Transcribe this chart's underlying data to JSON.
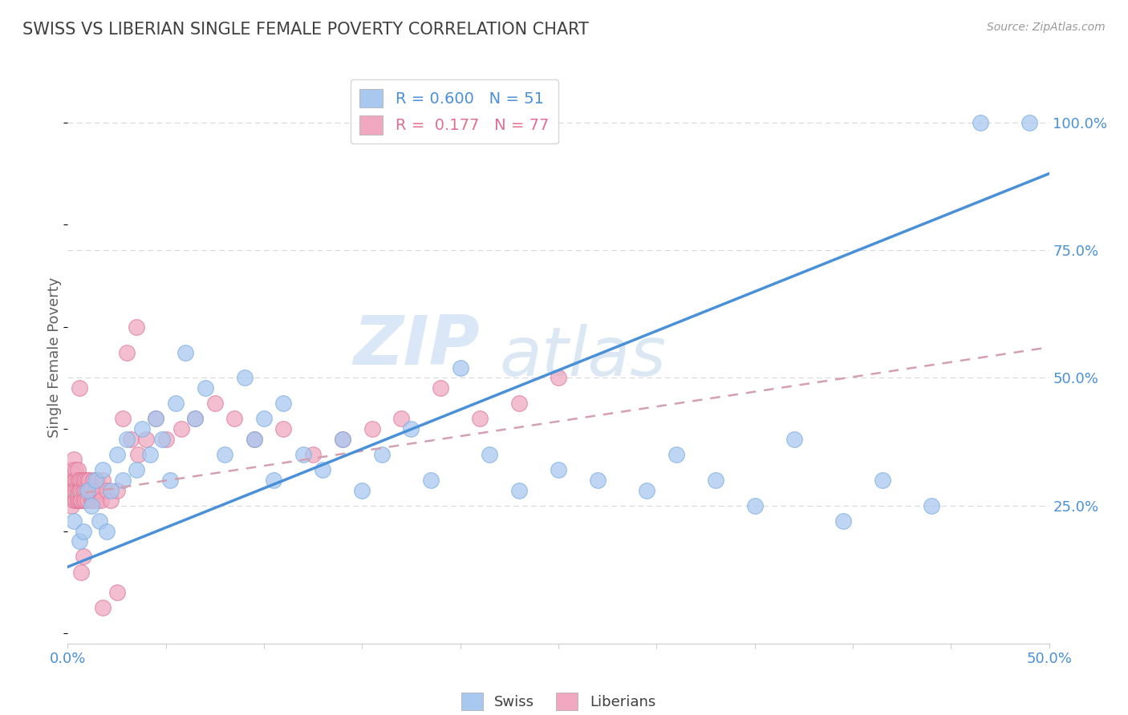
{
  "title": "SWISS VS LIBERIAN SINGLE FEMALE POVERTY CORRELATION CHART",
  "source": "Source: ZipAtlas.com",
  "ylabel": "Single Female Poverty",
  "xlim": [
    0.0,
    0.5
  ],
  "ylim": [
    -0.02,
    1.1
  ],
  "swiss_R": 0.6,
  "swiss_N": 51,
  "liberian_R": 0.177,
  "liberian_N": 77,
  "swiss_color": "#a8c8f0",
  "swiss_edge_color": "#7aaee0",
  "liberian_color": "#f0a8c0",
  "liberian_edge_color": "#e07898",
  "swiss_line_color": "#4a90d9",
  "liberian_line_color": "#e07090",
  "liberian_dash_color": "#d4a0b0",
  "grid_color": "#d8d8d8",
  "background_color": "#ffffff",
  "title_color": "#404040",
  "axis_label_color": "#4a90d9",
  "watermark1": "ZIP",
  "watermark2": "atlas",
  "swiss_line_x": [
    0.0,
    0.5
  ],
  "swiss_line_y": [
    0.13,
    0.9
  ],
  "liberian_line_x": [
    0.0,
    0.5
  ],
  "liberian_line_y": [
    0.27,
    0.56
  ],
  "swiss_x": [
    0.003,
    0.006,
    0.008,
    0.01,
    0.012,
    0.014,
    0.016,
    0.018,
    0.02,
    0.022,
    0.025,
    0.028,
    0.03,
    0.035,
    0.038,
    0.042,
    0.045,
    0.048,
    0.052,
    0.055,
    0.06,
    0.065,
    0.07,
    0.08,
    0.09,
    0.095,
    0.1,
    0.105,
    0.11,
    0.12,
    0.13,
    0.14,
    0.15,
    0.16,
    0.175,
    0.185,
    0.2,
    0.215,
    0.23,
    0.25,
    0.27,
    0.295,
    0.31,
    0.33,
    0.35,
    0.37,
    0.395,
    0.415,
    0.44,
    0.465,
    0.49
  ],
  "swiss_y": [
    0.22,
    0.18,
    0.2,
    0.28,
    0.25,
    0.3,
    0.22,
    0.32,
    0.2,
    0.28,
    0.35,
    0.3,
    0.38,
    0.32,
    0.4,
    0.35,
    0.42,
    0.38,
    0.3,
    0.45,
    0.55,
    0.42,
    0.48,
    0.35,
    0.5,
    0.38,
    0.42,
    0.3,
    0.45,
    0.35,
    0.32,
    0.38,
    0.28,
    0.35,
    0.4,
    0.3,
    0.52,
    0.35,
    0.28,
    0.32,
    0.3,
    0.28,
    0.35,
    0.3,
    0.25,
    0.38,
    0.22,
    0.3,
    0.25,
    1.0,
    1.0
  ],
  "liberian_x": [
    0.001,
    0.001,
    0.002,
    0.002,
    0.002,
    0.003,
    0.003,
    0.003,
    0.003,
    0.004,
    0.004,
    0.004,
    0.004,
    0.005,
    0.005,
    0.005,
    0.005,
    0.005,
    0.006,
    0.006,
    0.006,
    0.006,
    0.007,
    0.007,
    0.007,
    0.007,
    0.008,
    0.008,
    0.008,
    0.009,
    0.009,
    0.009,
    0.01,
    0.01,
    0.01,
    0.011,
    0.011,
    0.012,
    0.012,
    0.013,
    0.013,
    0.014,
    0.015,
    0.015,
    0.016,
    0.017,
    0.018,
    0.02,
    0.022,
    0.025,
    0.028,
    0.032,
    0.036,
    0.04,
    0.045,
    0.05,
    0.058,
    0.065,
    0.075,
    0.085,
    0.095,
    0.11,
    0.125,
    0.14,
    0.155,
    0.17,
    0.19,
    0.21,
    0.23,
    0.25,
    0.03,
    0.035,
    0.018,
    0.025,
    0.008,
    0.007,
    0.006
  ],
  "liberian_y": [
    0.28,
    0.3,
    0.25,
    0.32,
    0.28,
    0.26,
    0.3,
    0.34,
    0.28,
    0.32,
    0.26,
    0.3,
    0.28,
    0.26,
    0.3,
    0.28,
    0.32,
    0.26,
    0.28,
    0.3,
    0.26,
    0.28,
    0.26,
    0.3,
    0.28,
    0.26,
    0.28,
    0.3,
    0.26,
    0.28,
    0.3,
    0.26,
    0.28,
    0.3,
    0.26,
    0.28,
    0.3,
    0.26,
    0.28,
    0.26,
    0.3,
    0.28,
    0.26,
    0.3,
    0.28,
    0.26,
    0.3,
    0.28,
    0.26,
    0.28,
    0.42,
    0.38,
    0.35,
    0.38,
    0.42,
    0.38,
    0.4,
    0.42,
    0.45,
    0.42,
    0.38,
    0.4,
    0.35,
    0.38,
    0.4,
    0.42,
    0.48,
    0.42,
    0.45,
    0.5,
    0.55,
    0.6,
    0.05,
    0.08,
    0.15,
    0.12,
    0.48
  ]
}
